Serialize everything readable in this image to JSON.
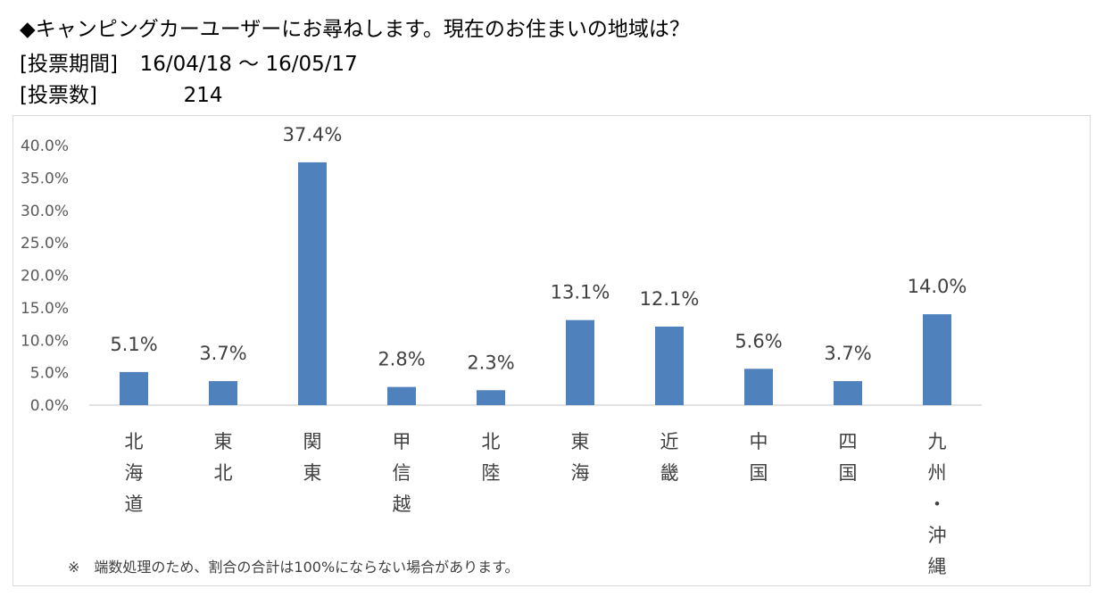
{
  "header": {
    "question": "◆キャンピングカーユーザーにお尋ねします。現在のお住まいの地域は？",
    "period_label": "[投票期間]",
    "period_value": "16/04/18 ～ 16/05/17",
    "count_label": "[投票数]",
    "count_value": "214"
  },
  "footnote": "※　端数処理のため、割合の合計は100%にならない場合があります。",
  "chart_data": {
    "type": "bar",
    "categories": [
      "北海道",
      "東北",
      "関東",
      "甲信越",
      "北陸",
      "東海",
      "近畿",
      "中国",
      "四国",
      "九州・沖縄"
    ],
    "values": [
      5.1,
      3.7,
      37.4,
      2.8,
      2.3,
      13.1,
      12.1,
      5.6,
      3.7,
      14.0
    ],
    "value_labels": [
      "5.1%",
      "3.7%",
      "37.4%",
      "2.8%",
      "2.3%",
      "13.1%",
      "12.1%",
      "5.6%",
      "3.7%",
      "14.0%"
    ],
    "y_ticks": [
      "0.0%",
      "5.0%",
      "10.0%",
      "15.0%",
      "20.0%",
      "25.0%",
      "30.0%",
      "35.0%",
      "40.0%"
    ],
    "ylim": [
      0,
      40
    ],
    "ytick_step": 5,
    "grid": false,
    "legend": "none",
    "bar_color": "#4f81bd",
    "axis_color": "#d9d9d9"
  }
}
